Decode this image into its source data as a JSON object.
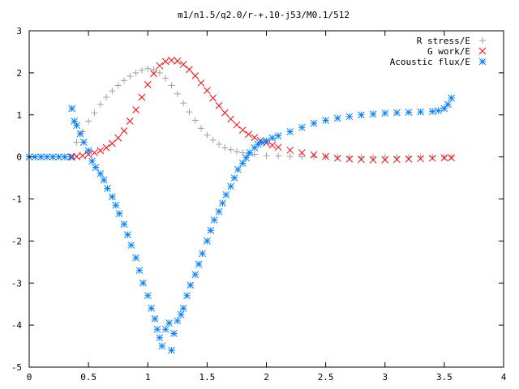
{
  "chart_data": {
    "type": "scatter",
    "title": "m1/n1.5/q2.0/r-+.10-j53/M0.1/512",
    "xlabel": "",
    "ylabel": "",
    "xlim": [
      0,
      4
    ],
    "ylim": [
      -5,
      3
    ],
    "x_ticks": [
      "0",
      "0.5",
      "1",
      "1.5",
      "2",
      "2.5",
      "3",
      "3.5",
      "4"
    ],
    "y_ticks": [
      "3",
      "2",
      "1",
      "0",
      "-1",
      "-2",
      "-3",
      "-4",
      "-5"
    ],
    "grid": false,
    "legend_position": "top-right",
    "series": [
      {
        "name": "R stress/E",
        "marker": "plus",
        "color": "#a0a0a0",
        "x": [
          0.0,
          0.1,
          0.2,
          0.3,
          0.35,
          0.4,
          0.45,
          0.5,
          0.55,
          0.6,
          0.65,
          0.7,
          0.75,
          0.8,
          0.85,
          0.9,
          0.95,
          1.0,
          1.05,
          1.1,
          1.15,
          1.2,
          1.25,
          1.3,
          1.35,
          1.4,
          1.45,
          1.5,
          1.55,
          1.6,
          1.65,
          1.7,
          1.75,
          1.8,
          1.85,
          1.9,
          2.0,
          2.1,
          2.2,
          2.3,
          2.4,
          2.5,
          2.6,
          2.7,
          2.8,
          2.9,
          3.0,
          3.1,
          3.2,
          3.3,
          3.4,
          3.5,
          3.56
        ],
        "y": [
          0,
          0,
          0,
          0,
          0.0,
          0.35,
          0.6,
          0.85,
          1.05,
          1.25,
          1.42,
          1.57,
          1.7,
          1.82,
          1.92,
          2.0,
          2.06,
          2.1,
          2.08,
          2.0,
          1.87,
          1.7,
          1.5,
          1.28,
          1.07,
          0.87,
          0.68,
          0.52,
          0.4,
          0.3,
          0.22,
          0.17,
          0.13,
          0.1,
          0.08,
          0.06,
          0.03,
          0.02,
          0.01,
          0.0,
          0.0,
          0.0,
          0.0,
          0.0,
          0.0,
          0.0,
          0.0,
          0.0,
          0.0,
          0.0,
          0.0,
          0.0,
          0.0
        ]
      },
      {
        "name": "G work/E",
        "marker": "cross",
        "color": "#ff0000",
        "x": [
          0.36,
          0.4,
          0.45,
          0.5,
          0.55,
          0.6,
          0.65,
          0.7,
          0.75,
          0.8,
          0.85,
          0.9,
          0.95,
          1.0,
          1.05,
          1.1,
          1.15,
          1.2,
          1.25,
          1.3,
          1.35,
          1.4,
          1.45,
          1.5,
          1.55,
          1.6,
          1.65,
          1.7,
          1.75,
          1.8,
          1.85,
          1.9,
          1.95,
          2.0,
          2.05,
          2.1,
          2.2,
          2.3,
          2.4,
          2.5,
          2.6,
          2.7,
          2.8,
          2.9,
          3.0,
          3.1,
          3.2,
          3.3,
          3.4,
          3.5,
          3.56
        ],
        "y": [
          0.0,
          0.01,
          0.03,
          0.06,
          0.1,
          0.15,
          0.22,
          0.32,
          0.45,
          0.62,
          0.85,
          1.12,
          1.42,
          1.72,
          1.98,
          2.17,
          2.27,
          2.3,
          2.28,
          2.2,
          2.08,
          1.93,
          1.76,
          1.58,
          1.4,
          1.22,
          1.05,
          0.9,
          0.76,
          0.64,
          0.54,
          0.46,
          0.39,
          0.33,
          0.28,
          0.23,
          0.16,
          0.1,
          0.05,
          0.01,
          -0.03,
          -0.05,
          -0.06,
          -0.07,
          -0.07,
          -0.06,
          -0.05,
          -0.04,
          -0.03,
          -0.02,
          -0.02
        ]
      },
      {
        "name": "Acoustic flux/E",
        "marker": "star",
        "color": "#0080ff",
        "x": [
          0.0,
          0.05,
          0.1,
          0.15,
          0.2,
          0.25,
          0.3,
          0.35,
          0.36,
          0.38,
          0.4,
          0.43,
          0.46,
          0.5,
          0.53,
          0.56,
          0.6,
          0.63,
          0.66,
          0.7,
          0.73,
          0.76,
          0.8,
          0.83,
          0.86,
          0.9,
          0.93,
          0.96,
          1.0,
          1.03,
          1.06,
          1.08,
          1.1,
          1.12,
          1.15,
          1.18,
          1.2,
          1.22,
          1.25,
          1.28,
          1.3,
          1.33,
          1.36,
          1.4,
          1.43,
          1.46,
          1.5,
          1.53,
          1.56,
          1.6,
          1.63,
          1.66,
          1.7,
          1.73,
          1.76,
          1.8,
          1.83,
          1.86,
          1.9,
          1.93,
          1.96,
          2.0,
          2.05,
          2.1,
          2.2,
          2.3,
          2.4,
          2.5,
          2.6,
          2.7,
          2.8,
          2.9,
          3.0,
          3.1,
          3.2,
          3.3,
          3.4,
          3.45,
          3.5,
          3.53,
          3.56
        ],
        "y": [
          0.0,
          0.0,
          0.0,
          0.0,
          0.0,
          0.0,
          0.0,
          0.0,
          1.15,
          0.85,
          0.75,
          0.55,
          0.35,
          0.15,
          -0.1,
          -0.25,
          -0.4,
          -0.55,
          -0.75,
          -0.95,
          -1.15,
          -1.35,
          -1.6,
          -1.85,
          -2.1,
          -2.4,
          -2.7,
          -3.0,
          -3.3,
          -3.6,
          -3.85,
          -4.1,
          -4.3,
          -4.5,
          -4.1,
          -3.95,
          -4.6,
          -4.2,
          -3.9,
          -3.75,
          -3.6,
          -3.3,
          -3.05,
          -2.8,
          -2.55,
          -2.3,
          -2.0,
          -1.75,
          -1.5,
          -1.3,
          -1.1,
          -0.9,
          -0.7,
          -0.5,
          -0.3,
          -0.15,
          -0.02,
          0.1,
          0.22,
          0.3,
          0.35,
          0.38,
          0.45,
          0.5,
          0.6,
          0.7,
          0.8,
          0.87,
          0.92,
          0.96,
          1.0,
          1.02,
          1.04,
          1.05,
          1.06,
          1.07,
          1.08,
          1.1,
          1.15,
          1.25,
          1.4
        ]
      }
    ]
  }
}
